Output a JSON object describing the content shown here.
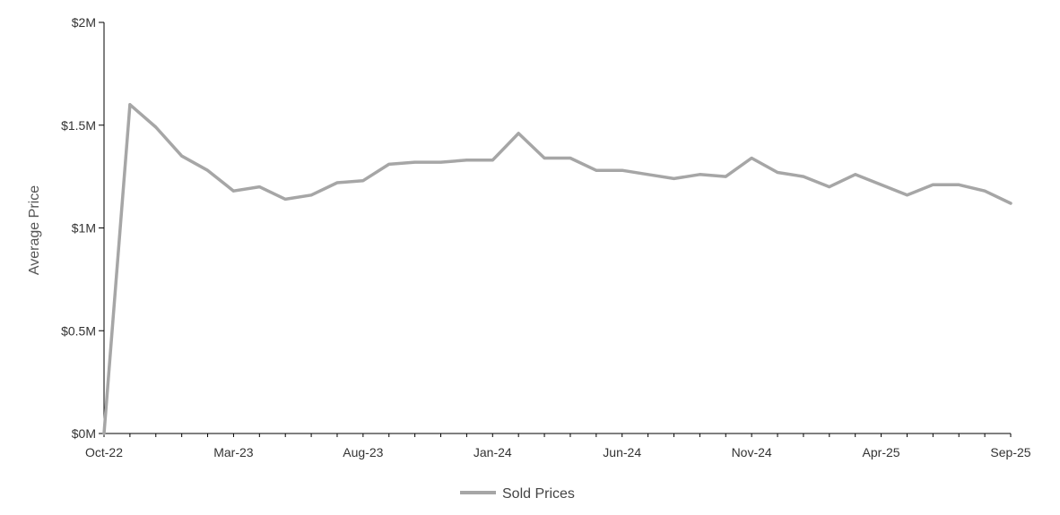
{
  "chart_data": {
    "type": "line",
    "title": "",
    "xlabel": "",
    "ylabel": "Average Price",
    "ylim": [
      0,
      2000000
    ],
    "y_ticks": [
      {
        "value": 0,
        "label": "$0M"
      },
      {
        "value": 500000,
        "label": "$0.5M"
      },
      {
        "value": 1000000,
        "label": "$1M"
      },
      {
        "value": 1500000,
        "label": "$1.5M"
      },
      {
        "value": 2000000,
        "label": "$2M"
      }
    ],
    "x": [
      "Oct-22",
      "Nov-22",
      "Dec-22",
      "Jan-23",
      "Feb-23",
      "Mar-23",
      "Apr-23",
      "May-23",
      "Jun-23",
      "Jul-23",
      "Aug-23",
      "Sep-23",
      "Oct-23",
      "Nov-23",
      "Dec-23",
      "Jan-24",
      "Feb-24",
      "Mar-24",
      "Apr-24",
      "May-24",
      "Jun-24",
      "Jul-24",
      "Aug-24",
      "Sep-24",
      "Oct-24",
      "Nov-24",
      "Dec-24",
      "Jan-25",
      "Feb-25",
      "Mar-25",
      "Apr-25",
      "May-25",
      "Jun-25",
      "Jul-25",
      "Aug-25",
      "Sep-25"
    ],
    "x_tick_labels": [
      "Oct-22",
      "Mar-23",
      "Aug-23",
      "Jan-24",
      "Jun-24",
      "Nov-24",
      "Apr-25",
      "Sep-25"
    ],
    "grid": false,
    "legend_position": "bottom-center",
    "series": [
      {
        "name": "Sold Prices",
        "color": "#a6a6a6",
        "values": [
          0,
          1600000,
          1490000,
          1350000,
          1280000,
          1180000,
          1200000,
          1140000,
          1160000,
          1220000,
          1230000,
          1310000,
          1320000,
          1320000,
          1330000,
          1330000,
          1460000,
          1340000,
          1340000,
          1280000,
          1280000,
          1260000,
          1240000,
          1260000,
          1250000,
          1340000,
          1270000,
          1250000,
          1200000,
          1260000,
          1210000,
          1160000,
          1210000,
          1210000,
          1180000,
          1120000
        ]
      }
    ]
  }
}
